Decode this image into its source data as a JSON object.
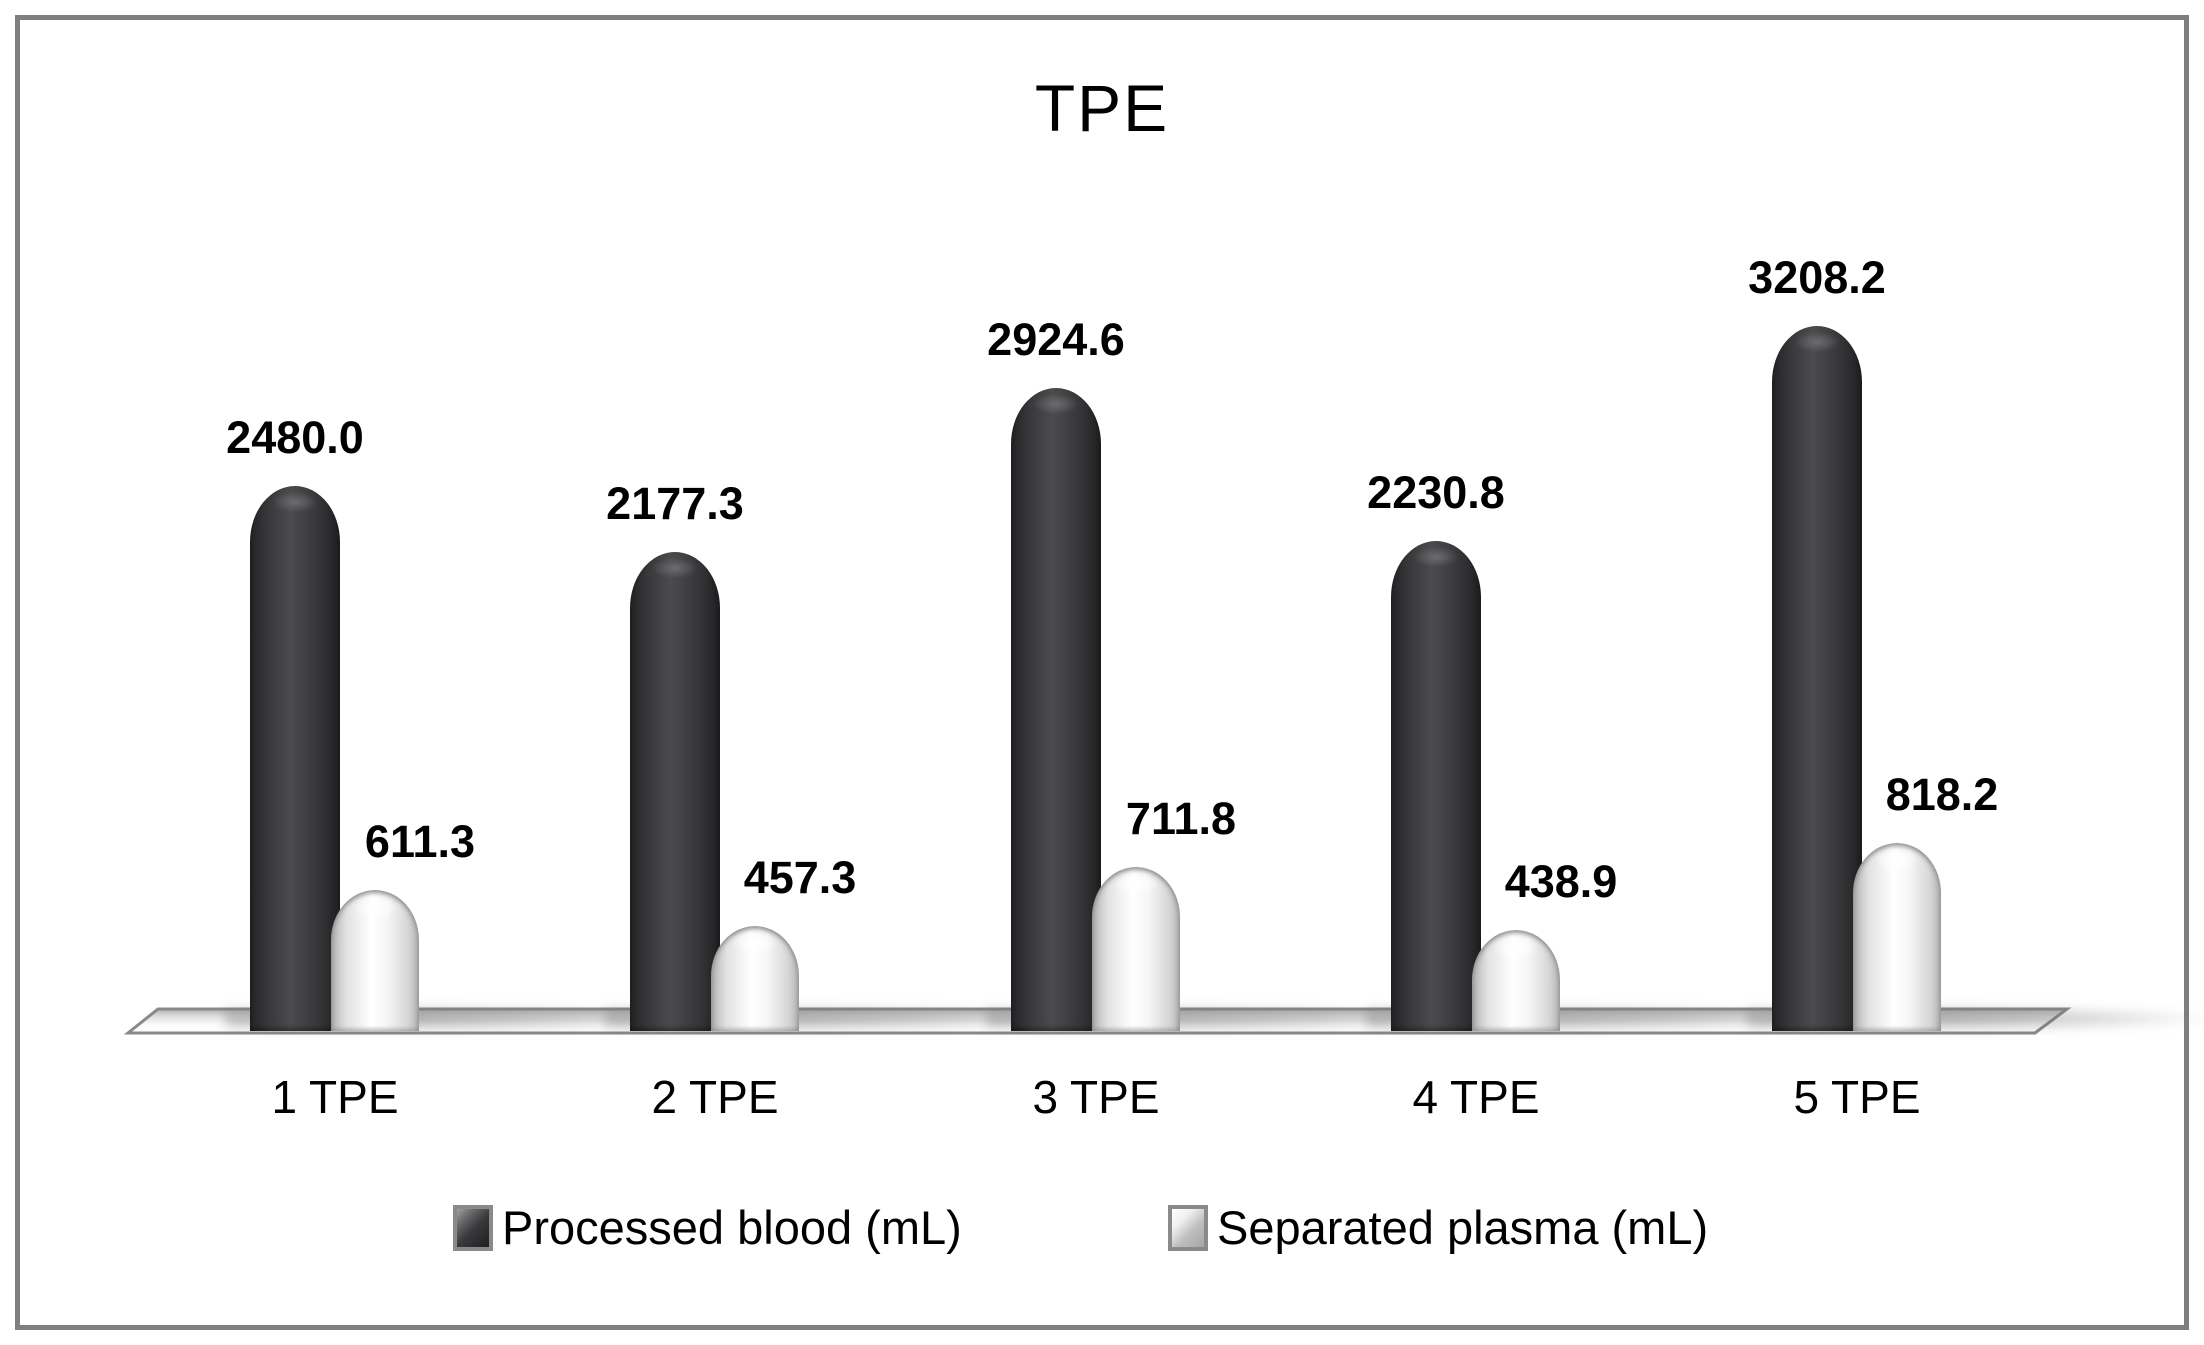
{
  "title": "TPE",
  "chart_data": {
    "type": "bar",
    "bar_style": "3d-cylinder",
    "title": "TPE",
    "categories": [
      "1 TPE",
      "2 TPE",
      "3 TPE",
      "4 TPE",
      "5 TPE"
    ],
    "series": [
      {
        "name": "Processed blood (mL)",
        "values": [
          2480.0,
          2177.3,
          2924.6,
          2230.8,
          3208.2
        ],
        "labels": [
          "2480.0",
          "2177.3",
          "2924.6",
          "2230.8",
          "3208.2"
        ],
        "color": "#3a3a3c"
      },
      {
        "name": "Separated plasma (mL)",
        "values": [
          611.3,
          457.3,
          711.8,
          438.9,
          818.2
        ],
        "labels": [
          "611.3",
          "457.3",
          "711.8",
          "438.9",
          "818.2"
        ],
        "color": "#f5f5f5"
      }
    ],
    "xlabel": "",
    "ylabel": "",
    "grid": false,
    "value_axis_visible": false,
    "legend_position": "bottom",
    "data_labels_visible": true
  },
  "legend": {
    "items": [
      {
        "label": "Processed blood (mL)",
        "swatch": "dark"
      },
      {
        "label": "Separated plasma (mL)",
        "swatch": "light"
      }
    ]
  },
  "colors": {
    "dark_bar": "#3a3a3c",
    "light_bar": "#f5f5f5",
    "frame_border": "#7f7f7f",
    "text": "#000000",
    "floor_outline": "#898989"
  }
}
